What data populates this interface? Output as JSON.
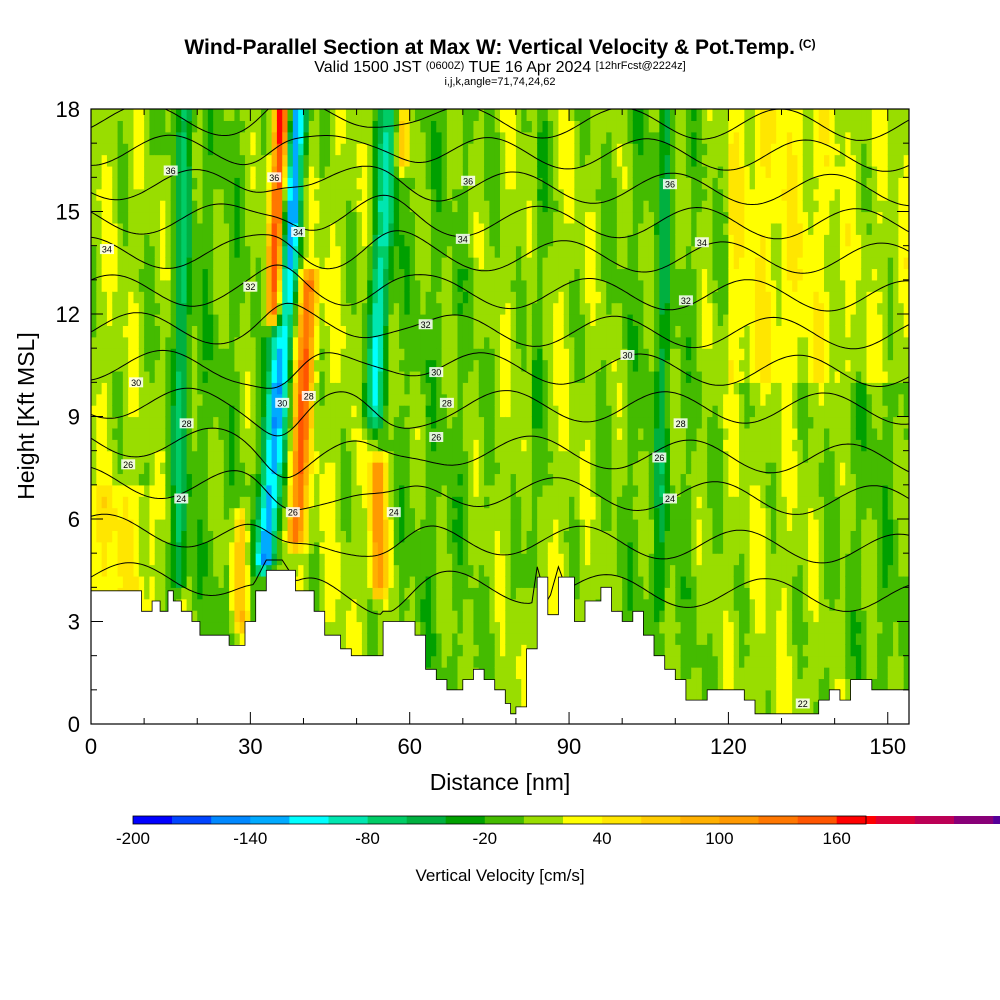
{
  "header": {
    "title": "Wind-Parallel Section at Max W: Vertical Velocity & Pot.Temp.",
    "copyright": "(C)",
    "valid_prefix": "Valid 1500 JST",
    "valid_utc": "(0600Z)",
    "valid_date": "TUE 16 Apr 2024",
    "forecast": "[12hrFcst@2224z]",
    "indices": "i,j,k,angle=71,74,24,62"
  },
  "chart_data": {
    "type": "heatmap",
    "xlabel": "Distance [nm]",
    "ylabel": "Height [Kft MSL]",
    "xlim": [
      0,
      154
    ],
    "ylim": [
      0,
      18
    ],
    "x_ticks": [
      0,
      30,
      60,
      90,
      120,
      150
    ],
    "y_ticks": [
      0,
      3,
      6,
      9,
      12,
      15,
      18
    ],
    "colorbar": {
      "label": "Vertical Velocity [cm/s]",
      "range": [
        -200,
        175
      ],
      "step": 20,
      "tick_labels": [
        -200,
        -140,
        -80,
        -20,
        40,
        100,
        160
      ],
      "colors": [
        "#0000ff",
        "#0044ff",
        "#0088ff",
        "#00aaff",
        "#00ffff",
        "#00e6b0",
        "#00cc66",
        "#00b040",
        "#00a000",
        "#44bb00",
        "#99dd00",
        "#ffff00",
        "#ffe600",
        "#ffcc00",
        "#ffb000",
        "#ff9900",
        "#ff7700",
        "#ff5500",
        "#ff0000",
        "#dd0033",
        "#bb0055",
        "#880077",
        "#550099"
      ]
    },
    "terrain_kft": [
      [
        0,
        3.9
      ],
      [
        8,
        3.9
      ],
      [
        9.5,
        3.3
      ],
      [
        11.5,
        3.6
      ],
      [
        13,
        3.3
      ],
      [
        14.5,
        3.9
      ],
      [
        15.5,
        3.6
      ],
      [
        17,
        3.3
      ],
      [
        19,
        3.0
      ],
      [
        20.5,
        2.6
      ],
      [
        24,
        2.6
      ],
      [
        26,
        2.3
      ],
      [
        29,
        3.0
      ],
      [
        31,
        3.9
      ],
      [
        33,
        4.5
      ],
      [
        36,
        4.5
      ],
      [
        38.5,
        3.9
      ],
      [
        42,
        3.3
      ],
      [
        44,
        2.6
      ],
      [
        47,
        2.2
      ],
      [
        49,
        2.0
      ],
      [
        53,
        2.0
      ],
      [
        55,
        3.0
      ],
      [
        59,
        3.0
      ],
      [
        61,
        2.6
      ],
      [
        63,
        1.6
      ],
      [
        65,
        1.3
      ],
      [
        67,
        1.0
      ],
      [
        70,
        1.3
      ],
      [
        72,
        1.6
      ],
      [
        74,
        1.3
      ],
      [
        76,
        1.0
      ],
      [
        78,
        0.6
      ],
      [
        79,
        0.3
      ],
      [
        80,
        0.5
      ],
      [
        82,
        2.2
      ],
      [
        84,
        4.3
      ],
      [
        86,
        3.2
      ],
      [
        88,
        4.3
      ],
      [
        91,
        3.0
      ],
      [
        93,
        3.6
      ],
      [
        96,
        4.0
      ],
      [
        98,
        3.3
      ],
      [
        100,
        3.0
      ],
      [
        102,
        3.3
      ],
      [
        104,
        2.6
      ],
      [
        106,
        2.0
      ],
      [
        108,
        1.6
      ],
      [
        110,
        1.3
      ],
      [
        112,
        0.7
      ],
      [
        114,
        0.7
      ],
      [
        116,
        1.0
      ],
      [
        120,
        1.0
      ],
      [
        123,
        0.7
      ],
      [
        125,
        0.3
      ],
      [
        131,
        0.3
      ],
      [
        135,
        0.3
      ],
      [
        137,
        0.7
      ],
      [
        139,
        1.0
      ],
      [
        141,
        0.7
      ],
      [
        143,
        1.3
      ],
      [
        145,
        1.3
      ],
      [
        147,
        1.0
      ],
      [
        154,
        1.0
      ]
    ],
    "theta_contour_labels": [
      {
        "label": "36",
        "x": 15,
        "y": 16.2
      },
      {
        "label": "36",
        "x": 34.5,
        "y": 16.0
      },
      {
        "label": "36",
        "x": 71,
        "y": 15.9
      },
      {
        "label": "36",
        "x": 109,
        "y": 15.8
      },
      {
        "label": "34",
        "x": 3,
        "y": 13.9
      },
      {
        "label": "34",
        "x": 39,
        "y": 14.4
      },
      {
        "label": "34",
        "x": 70,
        "y": 14.2
      },
      {
        "label": "34",
        "x": 115,
        "y": 14.1
      },
      {
        "label": "32",
        "x": 30,
        "y": 12.8
      },
      {
        "label": "32",
        "x": 63,
        "y": 11.7
      },
      {
        "label": "32",
        "x": 112,
        "y": 12.4
      },
      {
        "label": "30",
        "x": 8.5,
        "y": 10.0
      },
      {
        "label": "30",
        "x": 36,
        "y": 9.4
      },
      {
        "label": "30",
        "x": 65,
        "y": 10.3
      },
      {
        "label": "30",
        "x": 101,
        "y": 10.8
      },
      {
        "label": "28",
        "x": 18,
        "y": 8.8
      },
      {
        "label": "28",
        "x": 41,
        "y": 9.6
      },
      {
        "label": "28",
        "x": 67,
        "y": 9.4
      },
      {
        "label": "28",
        "x": 111,
        "y": 8.8
      },
      {
        "label": "26",
        "x": 7,
        "y": 7.6
      },
      {
        "label": "26",
        "x": 38,
        "y": 6.2
      },
      {
        "label": "26",
        "x": 65,
        "y": 8.4
      },
      {
        "label": "26",
        "x": 107,
        "y": 7.8
      },
      {
        "label": "24",
        "x": 17,
        "y": 6.6
      },
      {
        "label": "24",
        "x": 57,
        "y": 6.2
      },
      {
        "label": "24",
        "x": 109,
        "y": 6.6
      },
      {
        "label": "22",
        "x": 134,
        "y": 0.6
      }
    ],
    "updrafts": [
      {
        "x": 34.5,
        "lean": 0.25,
        "ybot": 12,
        "ytop": 18,
        "width": 1.6,
        "w": 170
      },
      {
        "x": 38.5,
        "lean": 0.35,
        "ybot": 5.5,
        "ytop": 13,
        "width": 1.8,
        "w": 120
      },
      {
        "x": 54,
        "lean": 0.0,
        "ybot": 4.0,
        "ytop": 7.5,
        "width": 1.5,
        "w": 110
      },
      {
        "x": 58.5,
        "lean": 0.2,
        "ybot": 16.5,
        "ytop": 18,
        "width": 1.5,
        "w": 80
      },
      {
        "x": 28,
        "lean": 0.0,
        "ybot": 3.0,
        "ytop": 6.0,
        "width": 1.5,
        "w": 70
      }
    ],
    "downdrafts": [
      {
        "x": 33,
        "lean": 0.45,
        "ybot": 4.8,
        "ytop": 18,
        "width": 2.0,
        "w": -150
      },
      {
        "x": 16.5,
        "lean": 0.1,
        "ybot": 4.2,
        "ytop": 18,
        "width": 1.5,
        "w": -60
      },
      {
        "x": 53,
        "lean": 0.4,
        "ybot": 9.0,
        "ytop": 18,
        "width": 2.0,
        "w": -90
      },
      {
        "x": 83,
        "lean": 0.15,
        "ybot": 4.3,
        "ytop": 18,
        "width": 1.2,
        "w": -40
      },
      {
        "x": 107,
        "lean": 0.1,
        "ybot": 3.5,
        "ytop": 18,
        "width": 1.2,
        "w": -35
      }
    ]
  }
}
